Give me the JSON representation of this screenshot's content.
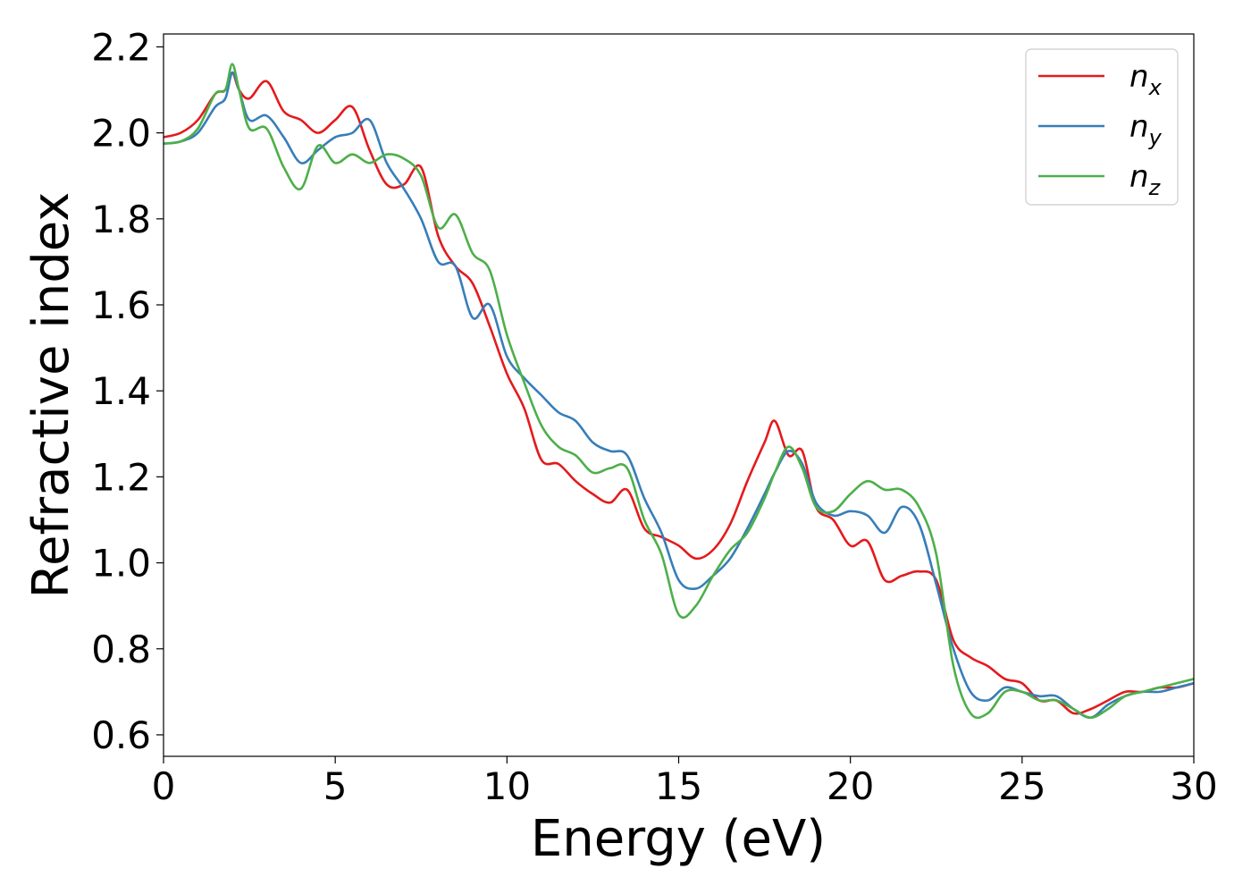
{
  "chart_data": {
    "type": "line",
    "title": "",
    "xlabel": "Energy (eV)",
    "ylabel": "Refractive index",
    "xlim": [
      0,
      30
    ],
    "ylim": [
      0.55,
      2.23
    ],
    "xticks": [
      0,
      5,
      10,
      15,
      20,
      25,
      30
    ],
    "xtick_labels": [
      "0",
      "5",
      "10",
      "15",
      "20",
      "25",
      "30"
    ],
    "yticks": [
      0.6,
      0.8,
      1.0,
      1.2,
      1.4,
      1.6,
      1.8,
      2.0,
      2.2
    ],
    "ytick_labels": [
      "0.6",
      "0.8",
      "1.0",
      "1.2",
      "1.4",
      "1.6",
      "1.8",
      "2.0",
      "2.2"
    ],
    "grid": false,
    "legend_position": "top-right",
    "series": [
      {
        "name": "n",
        "subscript": "x",
        "color": "#e41a1c",
        "x": [
          0,
          0.5,
          1.0,
          1.5,
          1.8,
          2.0,
          2.2,
          2.5,
          3.0,
          3.5,
          4.0,
          4.5,
          5.0,
          5.5,
          6.0,
          6.5,
          7.0,
          7.5,
          8.0,
          8.5,
          9.0,
          9.5,
          10.0,
          10.5,
          11.0,
          11.5,
          12.0,
          12.5,
          13.0,
          13.5,
          14.0,
          14.5,
          15.0,
          15.5,
          16.0,
          16.5,
          17.0,
          17.5,
          17.8,
          18.2,
          18.6,
          19.0,
          19.5,
          20.0,
          20.5,
          21.0,
          21.5,
          22.0,
          22.5,
          23.0,
          23.5,
          24.0,
          24.5,
          25.0,
          25.5,
          26.0,
          26.5,
          27.0,
          27.5,
          28.0,
          28.5,
          29.0,
          29.5,
          30.0
        ],
        "y": [
          1.99,
          2.0,
          2.03,
          2.09,
          2.1,
          2.14,
          2.1,
          2.08,
          2.12,
          2.05,
          2.03,
          2.0,
          2.03,
          2.06,
          1.96,
          1.88,
          1.88,
          1.92,
          1.76,
          1.69,
          1.65,
          1.55,
          1.44,
          1.36,
          1.24,
          1.23,
          1.19,
          1.16,
          1.14,
          1.17,
          1.08,
          1.06,
          1.04,
          1.01,
          1.03,
          1.09,
          1.19,
          1.28,
          1.33,
          1.25,
          1.26,
          1.13,
          1.1,
          1.04,
          1.05,
          0.96,
          0.97,
          0.98,
          0.96,
          0.82,
          0.78,
          0.76,
          0.73,
          0.72,
          0.68,
          0.68,
          0.65,
          0.66,
          0.68,
          0.7,
          0.7,
          0.71,
          0.71,
          0.72
        ]
      },
      {
        "name": "n",
        "subscript": "y",
        "color": "#377eb8",
        "x": [
          0,
          0.5,
          1.0,
          1.5,
          1.8,
          2.0,
          2.2,
          2.5,
          3.0,
          3.5,
          4.0,
          4.5,
          5.0,
          5.5,
          6.0,
          6.5,
          7.0,
          7.5,
          8.0,
          8.5,
          9.0,
          9.5,
          10.0,
          10.5,
          11.0,
          11.5,
          12.0,
          12.5,
          13.0,
          13.5,
          14.0,
          14.5,
          15.0,
          15.5,
          16.0,
          16.5,
          17.0,
          17.5,
          17.8,
          18.2,
          18.6,
          19.0,
          19.5,
          20.0,
          20.5,
          21.0,
          21.5,
          22.0,
          22.5,
          23.0,
          23.5,
          24.0,
          24.5,
          25.0,
          25.5,
          26.0,
          26.5,
          27.0,
          27.5,
          28.0,
          28.5,
          29.0,
          29.5,
          30.0
        ],
        "y": [
          1.975,
          1.98,
          2.0,
          2.06,
          2.08,
          2.14,
          2.1,
          2.03,
          2.04,
          1.99,
          1.93,
          1.96,
          1.99,
          2.0,
          2.03,
          1.93,
          1.87,
          1.8,
          1.7,
          1.69,
          1.57,
          1.6,
          1.48,
          1.43,
          1.39,
          1.35,
          1.33,
          1.28,
          1.26,
          1.25,
          1.15,
          1.07,
          0.96,
          0.94,
          0.97,
          1.01,
          1.08,
          1.16,
          1.21,
          1.26,
          1.23,
          1.14,
          1.11,
          1.12,
          1.11,
          1.07,
          1.13,
          1.09,
          0.95,
          0.8,
          0.7,
          0.68,
          0.71,
          0.7,
          0.69,
          0.69,
          0.66,
          0.64,
          0.67,
          0.69,
          0.7,
          0.7,
          0.71,
          0.72
        ]
      },
      {
        "name": "n",
        "subscript": "z",
        "color": "#4daf4a",
        "x": [
          0,
          0.5,
          1.0,
          1.5,
          1.8,
          2.0,
          2.2,
          2.5,
          3.0,
          3.5,
          4.0,
          4.5,
          5.0,
          5.5,
          6.0,
          6.5,
          7.0,
          7.5,
          8.0,
          8.5,
          9.0,
          9.5,
          10.0,
          10.5,
          11.0,
          11.5,
          12.0,
          12.5,
          13.0,
          13.5,
          14.0,
          14.5,
          15.0,
          15.5,
          16.0,
          16.5,
          17.0,
          17.5,
          17.8,
          18.2,
          18.6,
          19.0,
          19.5,
          20.0,
          20.5,
          21.0,
          21.5,
          22.0,
          22.5,
          23.0,
          23.5,
          24.0,
          24.5,
          25.0,
          25.5,
          26.0,
          26.5,
          27.0,
          27.5,
          28.0,
          28.5,
          29.0,
          29.5,
          30.0
        ],
        "y": [
          1.975,
          1.98,
          2.01,
          2.09,
          2.1,
          2.16,
          2.1,
          2.01,
          2.01,
          1.92,
          1.87,
          1.97,
          1.93,
          1.95,
          1.93,
          1.95,
          1.94,
          1.9,
          1.78,
          1.81,
          1.72,
          1.68,
          1.53,
          1.42,
          1.32,
          1.27,
          1.25,
          1.21,
          1.22,
          1.22,
          1.1,
          1.02,
          0.88,
          0.9,
          0.97,
          1.03,
          1.07,
          1.15,
          1.21,
          1.27,
          1.22,
          1.13,
          1.12,
          1.16,
          1.19,
          1.17,
          1.17,
          1.13,
          1.02,
          0.76,
          0.65,
          0.65,
          0.7,
          0.7,
          0.68,
          0.68,
          0.66,
          0.64,
          0.66,
          0.69,
          0.7,
          0.71,
          0.72,
          0.73
        ]
      }
    ]
  }
}
